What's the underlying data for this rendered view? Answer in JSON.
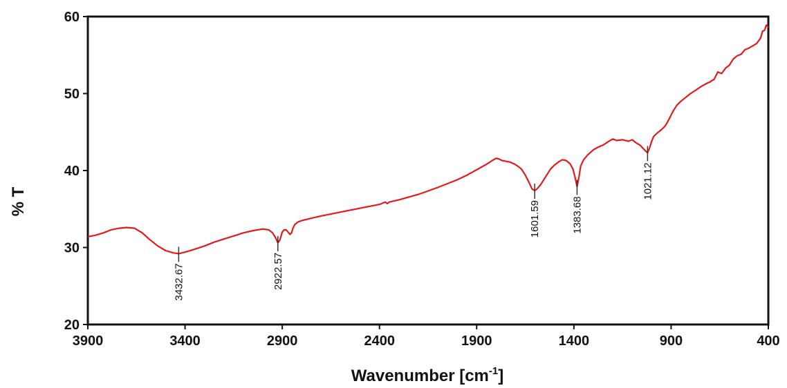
{
  "chart_data": {
    "type": "line",
    "xlabel": "Wavenumber [cm",
    "xlabel_sup": "-1",
    "xlabel_close": "]",
    "ylabel": "% T",
    "xlim": [
      3900,
      400
    ],
    "ylim": [
      20,
      60
    ],
    "x_reversed": true,
    "grid": false,
    "x_ticks": [
      3900,
      3400,
      2900,
      2400,
      1900,
      1400,
      900,
      400
    ],
    "y_ticks": [
      20,
      30,
      40,
      50,
      60
    ],
    "line_color": "#e31a1c",
    "series": [
      {
        "x": [
          3900,
          3860,
          3820,
          3780,
          3740,
          3700,
          3660,
          3620,
          3580,
          3540,
          3500,
          3460,
          3432.67,
          3400,
          3360,
          3300,
          3250,
          3200,
          3150,
          3100,
          3050,
          3000,
          2970,
          2950,
          2935,
          2922.57,
          2912,
          2900,
          2890,
          2880,
          2870,
          2860,
          2852,
          2845,
          2835,
          2820,
          2800,
          2750,
          2700,
          2600,
          2500,
          2400,
          2370,
          2360,
          2350,
          2300,
          2200,
          2100,
          2000,
          1950,
          1900,
          1850,
          1820,
          1800,
          1785,
          1770,
          1750,
          1730,
          1710,
          1690,
          1670,
          1650,
          1630,
          1615,
          1601.59,
          1590,
          1570,
          1550,
          1520,
          1500,
          1480,
          1460,
          1440,
          1420,
          1405,
          1395,
          1383.68,
          1375,
          1365,
          1350,
          1330,
          1300,
          1270,
          1250,
          1220,
          1200,
          1180,
          1150,
          1120,
          1100,
          1080,
          1060,
          1045,
          1030,
          1021.12,
          1010,
          1000,
          990,
          970,
          950,
          930,
          910,
          890,
          870,
          850,
          830,
          800,
          770,
          740,
          710,
          700,
          690,
          680,
          660,
          640,
          620,
          600,
          580,
          560,
          540,
          520,
          500,
          480,
          460,
          440,
          430,
          420,
          410,
          400
        ],
        "y": [
          31.4,
          31.6,
          31.9,
          32.3,
          32.5,
          32.6,
          32.5,
          31.9,
          31.0,
          30.2,
          29.6,
          29.3,
          29.2,
          29.4,
          29.7,
          30.2,
          30.7,
          31.1,
          31.5,
          31.9,
          32.2,
          32.4,
          32.3,
          31.9,
          31.3,
          30.6,
          31.0,
          32.0,
          32.3,
          32.3,
          32.0,
          31.7,
          31.9,
          32.5,
          33.0,
          33.3,
          33.5,
          33.8,
          34.1,
          34.6,
          35.1,
          35.6,
          35.9,
          35.7,
          35.9,
          36.2,
          36.9,
          37.8,
          38.8,
          39.4,
          40.1,
          40.8,
          41.3,
          41.6,
          41.5,
          41.3,
          41.2,
          41.1,
          40.9,
          40.6,
          40.2,
          39.4,
          38.4,
          37.6,
          37.4,
          37.6,
          38.2,
          39.0,
          40.2,
          40.7,
          41.1,
          41.4,
          41.3,
          40.9,
          40.2,
          39.2,
          37.9,
          39.0,
          40.6,
          41.4,
          42.0,
          42.7,
          43.1,
          43.3,
          43.8,
          44.1,
          43.9,
          44.0,
          43.8,
          44.0,
          43.6,
          43.3,
          42.9,
          42.5,
          42.3,
          43.0,
          43.8,
          44.4,
          44.9,
          45.3,
          45.8,
          46.7,
          47.7,
          48.5,
          49.0,
          49.4,
          50.0,
          50.5,
          51.0,
          51.4,
          51.5,
          51.7,
          51.8,
          52.8,
          52.6,
          53.3,
          53.7,
          54.5,
          54.9,
          55.1,
          55.7,
          55.9,
          56.2,
          56.5,
          57.2,
          58.1,
          58.2,
          58.9,
          58.6
        ]
      }
    ],
    "annotations": [
      {
        "x": 3432.67,
        "y": 29.2,
        "label": "3432.67"
      },
      {
        "x": 2922.57,
        "y": 30.6,
        "label": "2922.57"
      },
      {
        "x": 1601.59,
        "y": 37.4,
        "label": "1601.59"
      },
      {
        "x": 1383.68,
        "y": 37.9,
        "label": "1383.68"
      },
      {
        "x": 1021.12,
        "y": 42.3,
        "label": "1021.12"
      }
    ]
  }
}
